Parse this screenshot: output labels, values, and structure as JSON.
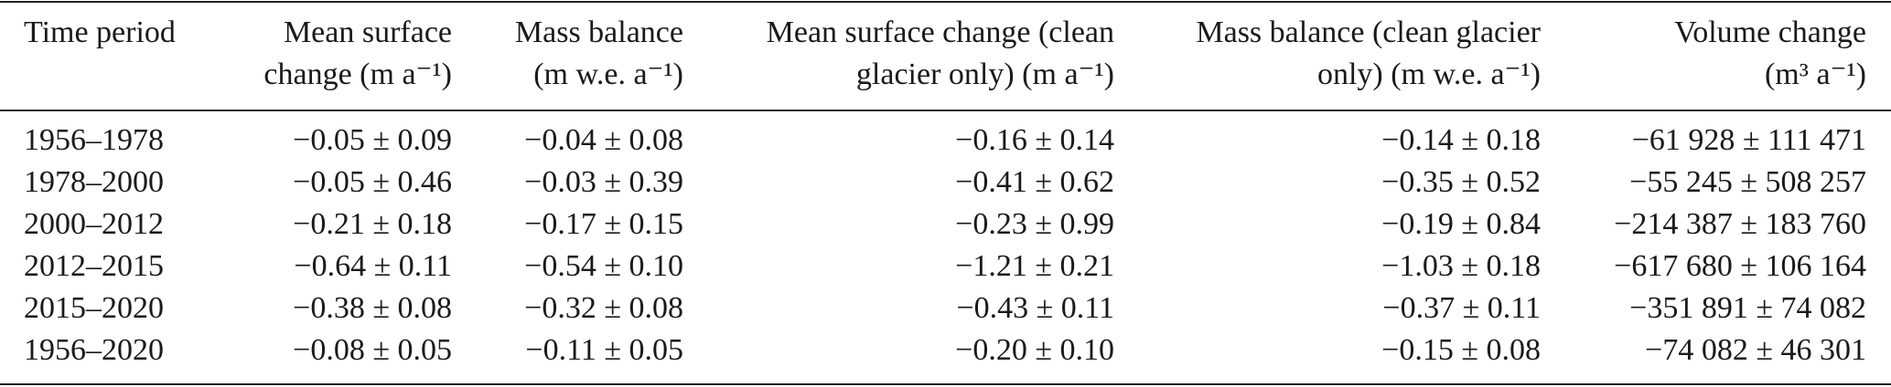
{
  "table": {
    "header": [
      [
        "Time period"
      ],
      [
        "Mean surface",
        "change (m a⁻¹)"
      ],
      [
        "Mass balance",
        "(m w.e. a⁻¹)"
      ],
      [
        "Mean surface change (clean",
        "glacier only) (m a⁻¹)"
      ],
      [
        "Mass balance (clean glacier",
        "only) (m w.e. a⁻¹)"
      ],
      [
        "Volume change",
        "(m³ a⁻¹)"
      ]
    ],
    "rows": [
      [
        "1956–1978",
        "−0.05 ± 0.09",
        "−0.04 ± 0.08",
        "−0.16 ± 0.14",
        "−0.14 ± 0.18",
        "−61 928 ± 111 471"
      ],
      [
        "1978–2000",
        "−0.05 ± 0.46",
        "−0.03 ± 0.39",
        "−0.41 ± 0.62",
        "−0.35 ± 0.52",
        "−55 245 ± 508 257"
      ],
      [
        "2000–2012",
        "−0.21 ± 0.18",
        "−0.17 ± 0.15",
        "−0.23 ± 0.99",
        "−0.19 ± 0.84",
        "−214 387 ± 183 760"
      ],
      [
        "2012–2015",
        "−0.64 ± 0.11",
        "−0.54 ± 0.10",
        "−1.21 ± 0.21",
        "−1.03 ± 0.18",
        "−617 680 ± 106 164"
      ],
      [
        "2015–2020",
        "−0.38 ± 0.08",
        "−0.32 ± 0.08",
        "−0.43 ± 0.11",
        "−0.37 ± 0.11",
        "−351 891 ± 74 082"
      ],
      [
        "1956–2020",
        "−0.08 ± 0.05",
        "−0.11 ± 0.05",
        "−0.20 ± 0.10",
        "−0.15 ± 0.08",
        "−74 082 ± 46 301"
      ]
    ]
  }
}
